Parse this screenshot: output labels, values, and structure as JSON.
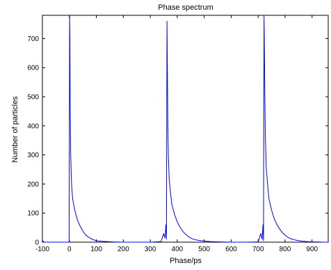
{
  "chart_data": {
    "type": "line",
    "title": "Phase spectrum",
    "xlabel": "Phase/ps",
    "ylabel": "Number of particles",
    "xlim": [
      -100,
      960
    ],
    "ylim": [
      0,
      780
    ],
    "xticks": [
      -100,
      0,
      100,
      200,
      300,
      400,
      500,
      600,
      700,
      800,
      900
    ],
    "yticks": [
      0,
      100,
      200,
      300,
      400,
      500,
      600,
      700
    ],
    "grid": false,
    "legend": "none",
    "series": [
      {
        "color": "#0000ff",
        "x": [
          -100,
          -99,
          -95,
          -90,
          -50,
          -5,
          -1,
          0,
          1,
          2,
          3,
          5,
          8,
          12,
          20,
          30,
          40,
          50,
          60,
          70,
          80,
          90,
          100,
          120,
          140,
          160,
          200,
          250,
          300,
          340,
          350,
          352,
          355,
          358,
          360,
          362,
          363,
          365,
          367,
          370,
          375,
          380,
          390,
          400,
          410,
          420,
          430,
          440,
          450,
          460,
          480,
          500,
          520,
          560,
          600,
          650,
          700,
          710,
          712,
          715,
          718,
          720,
          722,
          723,
          725,
          727,
          730,
          735,
          740,
          750,
          760,
          770,
          780,
          790,
          800,
          810,
          820,
          840,
          860,
          880,
          900,
          920,
          940,
          960
        ],
        "y": [
          10,
          5,
          1,
          0,
          0,
          0,
          0,
          390,
          780,
          690,
          450,
          300,
          200,
          150,
          110,
          75,
          55,
          38,
          25,
          18,
          12,
          8,
          5,
          3,
          2,
          1,
          0,
          0,
          0,
          2,
          30,
          20,
          15,
          60,
          10,
          760,
          640,
          420,
          300,
          220,
          170,
          130,
          95,
          70,
          52,
          38,
          28,
          20,
          14,
          10,
          6,
          4,
          2,
          1,
          0,
          0,
          1,
          30,
          20,
          10,
          60,
          5,
          780,
          700,
          500,
          360,
          260,
          200,
          150,
          110,
          80,
          60,
          45,
          33,
          24,
          17,
          12,
          7,
          4,
          2,
          1,
          1,
          0,
          0
        ]
      }
    ]
  }
}
